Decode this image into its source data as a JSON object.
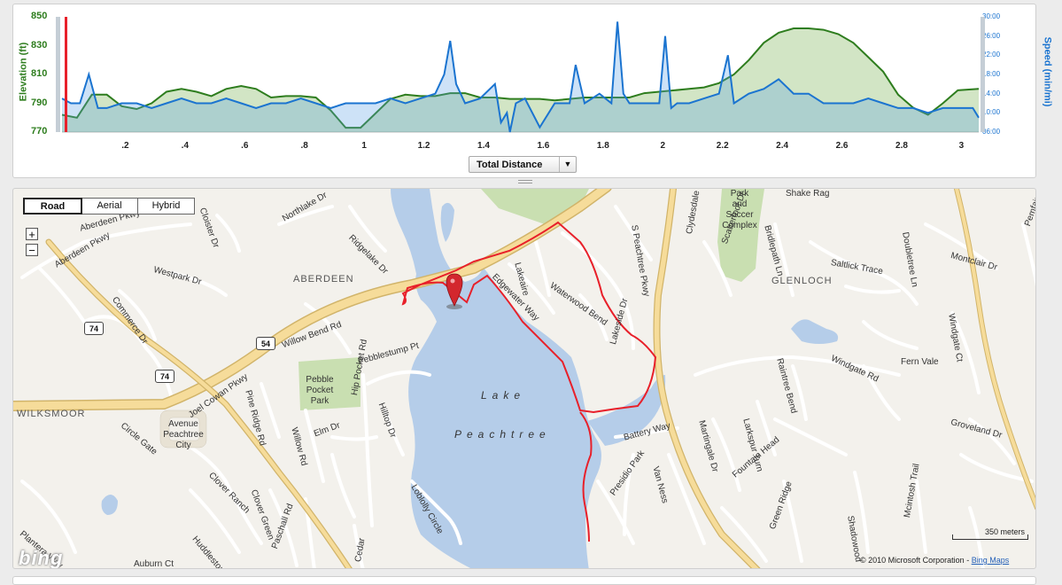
{
  "elevation_chart": {
    "y_left_ticks": [
      "850",
      "830",
      "810",
      "790",
      "770"
    ],
    "y_left_title": "Elevation (ft)",
    "y_right_ticks": [
      "30:00",
      "26:00",
      "22:00",
      "18:00",
      "14:00",
      "10:00",
      "06:00"
    ],
    "y_right_title": "Speed (min/mi)",
    "x_ticks": [
      ".2",
      ".4",
      ".6",
      ".8",
      "1",
      "1.2",
      "1.4",
      "1.6",
      "1.8",
      "2",
      "2.2",
      "2.4",
      "2.6",
      "2.8",
      "3"
    ],
    "elevation_color": "#2e7d1e",
    "speed_color": "#1b74d0",
    "x_selector": {
      "label": "Total Distance"
    }
  },
  "chart_data": {
    "type": "area",
    "xlabel": "",
    "ylabel": "Elevation (ft)",
    "ylim": [
      770,
      850
    ],
    "y2label": "Speed (min/mi)",
    "y2lim": [
      6,
      30
    ],
    "xlim": [
      0,
      3.07
    ],
    "series": [
      {
        "name": "Elevation (ft)",
        "axis": "left",
        "x": [
          0,
          0.05,
          0.1,
          0.15,
          0.2,
          0.25,
          0.3,
          0.35,
          0.4,
          0.45,
          0.5,
          0.55,
          0.6,
          0.65,
          0.7,
          0.75,
          0.8,
          0.85,
          0.9,
          0.95,
          1.0,
          1.05,
          1.1,
          1.15,
          1.2,
          1.25,
          1.3,
          1.35,
          1.4,
          1.45,
          1.5,
          1.55,
          1.6,
          1.65,
          1.7,
          1.75,
          1.8,
          1.85,
          1.9,
          1.95,
          2.0,
          2.05,
          2.1,
          2.15,
          2.2,
          2.25,
          2.3,
          2.35,
          2.4,
          2.45,
          2.5,
          2.55,
          2.6,
          2.65,
          2.7,
          2.75,
          2.8,
          2.85,
          2.9,
          2.95,
          3.0,
          3.07
        ],
        "values": [
          782,
          780,
          796,
          796,
          788,
          786,
          790,
          798,
          800,
          798,
          795,
          800,
          802,
          800,
          794,
          795,
          795,
          794,
          785,
          773,
          773,
          783,
          793,
          796,
          795,
          795,
          797,
          797,
          794,
          794,
          793,
          793,
          793,
          792,
          793,
          794,
          794,
          794,
          794,
          797,
          798,
          799,
          800,
          801,
          804,
          810,
          820,
          832,
          839,
          842,
          842,
          841,
          838,
          832,
          822,
          812,
          796,
          787,
          782,
          790,
          799,
          800
        ]
      },
      {
        "name": "Speed (min/mi)",
        "axis": "right",
        "x": [
          0,
          0.03,
          0.06,
          0.09,
          0.12,
          0.15,
          0.2,
          0.25,
          0.3,
          0.35,
          0.4,
          0.45,
          0.5,
          0.55,
          0.6,
          0.65,
          0.7,
          0.75,
          0.8,
          0.85,
          0.9,
          0.95,
          1.0,
          1.05,
          1.1,
          1.15,
          1.2,
          1.25,
          1.28,
          1.3,
          1.32,
          1.35,
          1.4,
          1.45,
          1.47,
          1.49,
          1.5,
          1.52,
          1.55,
          1.6,
          1.65,
          1.7,
          1.72,
          1.75,
          1.8,
          1.84,
          1.86,
          1.88,
          1.9,
          1.95,
          2.0,
          2.02,
          2.04,
          2.06,
          2.1,
          2.15,
          2.2,
          2.23,
          2.25,
          2.3,
          2.35,
          2.4,
          2.45,
          2.5,
          2.55,
          2.6,
          2.65,
          2.7,
          2.75,
          2.8,
          2.85,
          2.9,
          2.95,
          3.0,
          3.05,
          3.07
        ],
        "values": [
          13,
          12,
          12,
          18,
          11,
          11,
          12,
          12,
          11,
          12,
          13,
          12,
          12,
          13,
          12,
          11,
          12,
          12,
          13,
          12,
          11,
          12,
          12,
          12,
          13,
          12,
          13,
          14,
          18,
          25,
          16,
          12,
          13,
          16,
          8,
          10,
          6,
          12,
          13,
          7,
          12,
          12,
          20,
          12,
          14,
          12,
          29,
          14,
          12,
          12,
          12,
          26,
          11,
          12,
          12,
          13,
          14,
          22,
          12,
          14,
          15,
          17,
          14,
          14,
          12,
          12,
          12,
          13,
          12,
          11,
          11,
          10,
          11,
          11,
          11,
          9
        ]
      }
    ]
  },
  "map": {
    "type_buttons": [
      "Road",
      "Aerial",
      "Hybrid"
    ],
    "active_type": "Road",
    "zoom_in": "+",
    "zoom_out": "−",
    "places": [
      "ABERDEEN",
      "GLENLOCH",
      "WILKSMOOR"
    ],
    "lake_name": [
      "Lake",
      "Peachtree"
    ],
    "parks": [
      {
        "name": [
          "Park",
          "and",
          "Soccer",
          "Complex"
        ]
      },
      {
        "name": [
          "Pebble",
          "Pocket",
          "Park"
        ]
      },
      {
        "name": [
          "Avenue",
          "Peachtree",
          "City"
        ]
      }
    ],
    "shields": [
      "74",
      "54",
      "74"
    ],
    "streets": [
      "Aberdeen Pkwy",
      "Cloister Dr",
      "Northlake Dr",
      "Ridgelake Dr",
      "Westpark Dr",
      "Commerce Dr",
      "Joel Cowan Pkwy",
      "Willow Bend Rd",
      "Pebblestump Pt",
      "Pine Ridge Rd",
      "Hip Pocket Rd",
      "Hilltop Dr",
      "Elm Dr",
      "Willow Rd",
      "Circle Gate",
      "Clover Ranch",
      "Clover Green",
      "Huddleston Rd",
      "Plantera Way",
      "Auburn Ct",
      "Paschall Rd",
      "Loblolly Circle",
      "Cedar",
      "Edgewater Way",
      "Lakeaire",
      "Waterwood Bend",
      "Lakeside Dr",
      "Battery Way",
      "Presidio Park",
      "Van Ness",
      "S Peachtree Pkwy",
      "Clydesdale Rd",
      "Scatterfoot Dr",
      "Bridlepath Ln",
      "Saltlick Trace",
      "Doubletree Ln",
      "Montclair Dr",
      "Raintree Bend",
      "Windgate Rd",
      "Fern Vale",
      "Windgate Ct",
      "Groveland Dr",
      "Martingale Dr",
      "Larkspur Turn",
      "Fountain Head",
      "Green Ridge",
      "Shadowood",
      "Mcintosh Trail",
      "Pemfair Dr",
      "Shake Rag",
      "Aberdeen Pkwy"
    ],
    "scale_label": "350 meters",
    "copyright": "© 2010 Microsoft Corporation",
    "copyright_link": "Bing Maps",
    "logo": "bing",
    "route_color": "#e8202a",
    "water_color": "#b5cde9",
    "park_color": "#c9dfb1",
    "highway_color": "#f6dc9a"
  }
}
